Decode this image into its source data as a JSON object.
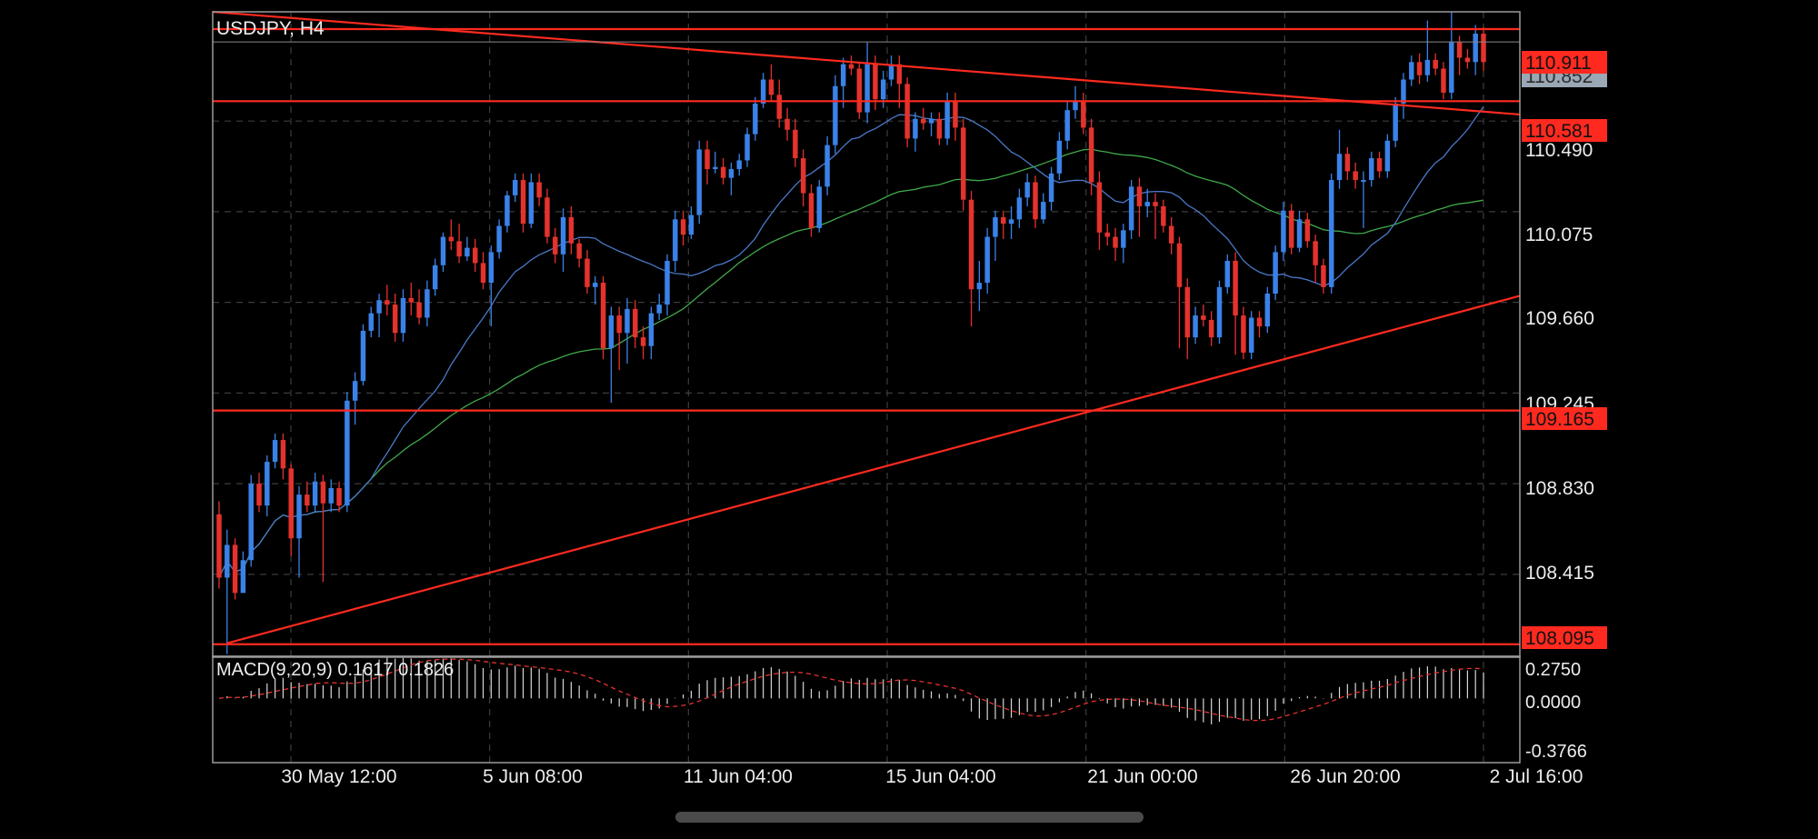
{
  "chart_data": [
    {
      "type": "candlestick",
      "symbol": "USDJPY, H4",
      "y_range": [
        108.04,
        110.99
      ],
      "price_ticks": [
        "110.490",
        "110.075",
        "109.660",
        "109.245",
        "108.830",
        "108.415"
      ],
      "time_labels": [
        "30 May 12:00",
        "5 Jun 08:00",
        "11 Jun 04:00",
        "15 Jun 04:00",
        "21 Jun 00:00",
        "26 Jun 20:00",
        "2 Jul 16:00"
      ],
      "grid": true,
      "colors": {
        "bull": "#3b82e8",
        "bear": "#e5322d",
        "line": "#ff2a1f",
        "ma_fast": "#4a78c8",
        "ma_slow": "#3fa84a"
      },
      "current_price": {
        "label": "110.852",
        "value": 110.852
      },
      "horizontal_levels": [
        {
          "label": "110.911",
          "value": 110.911
        },
        {
          "label": "110.581",
          "value": 110.581
        },
        {
          "label": "109.165",
          "value": 109.165
        },
        {
          "label": "108.095",
          "value": 108.095
        }
      ],
      "trendlines": [
        {
          "name": "resistance",
          "from": [
            0,
            110.99
          ],
          "to": [
            1,
            110.52
          ]
        },
        {
          "name": "support",
          "from": [
            0,
            108.1
          ],
          "to": [
            1,
            109.69
          ]
        }
      ],
      "candles": [
        [
          108.69,
          108.4,
          108.75,
          108.35
        ],
        [
          108.4,
          108.55,
          108.62,
          108.05
        ],
        [
          108.55,
          108.33,
          108.58,
          108.3
        ],
        [
          108.33,
          108.48,
          108.52,
          108.4
        ],
        [
          108.48,
          108.83,
          108.87,
          108.45
        ],
        [
          108.83,
          108.73,
          108.88,
          108.7
        ],
        [
          108.73,
          108.93,
          108.96,
          108.68
        ],
        [
          108.93,
          109.03,
          109.06,
          108.9
        ],
        [
          109.03,
          108.9,
          109.06,
          108.85
        ],
        [
          108.9,
          108.58,
          108.92,
          108.5
        ],
        [
          108.58,
          108.78,
          108.82,
          108.4
        ],
        [
          108.78,
          108.73,
          108.84,
          108.7
        ],
        [
          108.73,
          108.84,
          108.88,
          108.7
        ],
        [
          108.84,
          108.74,
          108.87,
          108.38
        ],
        [
          108.74,
          108.81,
          108.85,
          108.7
        ],
        [
          108.81,
          108.73,
          108.84,
          108.7
        ],
        [
          108.73,
          109.21,
          109.25,
          108.7
        ],
        [
          109.21,
          109.3,
          109.34,
          109.1
        ],
        [
          109.3,
          109.53,
          109.56,
          109.28
        ],
        [
          109.53,
          109.61,
          109.64,
          109.5
        ],
        [
          109.61,
          109.67,
          109.7,
          109.5
        ],
        [
          109.67,
          109.65,
          109.74,
          109.6
        ],
        [
          109.65,
          109.52,
          109.7,
          109.48
        ],
        [
          109.52,
          109.68,
          109.72,
          109.48
        ],
        [
          109.68,
          109.66,
          109.75,
          109.6
        ],
        [
          109.66,
          109.59,
          109.72,
          109.56
        ],
        [
          109.59,
          109.72,
          109.76,
          109.55
        ],
        [
          109.72,
          109.83,
          109.86,
          109.69
        ],
        [
          109.83,
          109.96,
          109.98,
          109.8
        ],
        [
          109.96,
          109.94,
          110.04,
          109.9
        ],
        [
          109.94,
          109.87,
          110.02,
          109.84
        ],
        [
          109.87,
          109.91,
          109.96,
          109.85
        ],
        [
          109.91,
          109.84,
          109.95,
          109.8
        ],
        [
          109.84,
          109.75,
          109.89,
          109.72
        ],
        [
          109.75,
          109.89,
          109.92,
          109.55
        ],
        [
          109.89,
          110.01,
          110.04,
          109.86
        ],
        [
          110.01,
          110.15,
          110.17,
          109.98
        ],
        [
          110.15,
          110.22,
          110.25,
          110.12
        ],
        [
          110.22,
          110.02,
          110.25,
          109.98
        ],
        [
          110.02,
          110.21,
          110.25,
          110.0
        ],
        [
          110.21,
          110.14,
          110.25,
          110.1
        ],
        [
          110.14,
          109.96,
          110.18,
          109.93
        ],
        [
          109.96,
          109.88,
          110.0,
          109.84
        ],
        [
          109.88,
          110.05,
          110.09,
          109.8
        ],
        [
          110.05,
          109.93,
          110.1,
          109.88
        ],
        [
          109.93,
          109.86,
          109.95,
          109.82
        ],
        [
          109.86,
          109.73,
          109.9,
          109.7
        ],
        [
          109.73,
          109.75,
          109.78,
          109.65
        ],
        [
          109.75,
          109.45,
          109.78,
          109.4
        ],
        [
          109.45,
          109.6,
          109.64,
          109.2
        ],
        [
          109.6,
          109.52,
          109.64,
          109.35
        ],
        [
          109.52,
          109.63,
          109.68,
          109.38
        ],
        [
          109.63,
          109.5,
          109.67,
          109.45
        ],
        [
          109.5,
          109.46,
          109.55,
          109.4
        ],
        [
          109.46,
          109.61,
          109.64,
          109.4
        ],
        [
          109.61,
          109.65,
          109.7,
          109.58
        ],
        [
          109.65,
          109.85,
          109.88,
          109.6
        ],
        [
          109.85,
          110.04,
          110.08,
          109.8
        ],
        [
          110.04,
          109.97,
          110.08,
          109.92
        ],
        [
          109.97,
          110.06,
          110.1,
          109.95
        ],
        [
          110.06,
          110.36,
          110.4,
          110.02
        ],
        [
          110.36,
          110.27,
          110.4,
          110.2
        ],
        [
          110.27,
          110.28,
          110.35,
          110.25
        ],
        [
          110.28,
          110.23,
          110.32,
          110.2
        ],
        [
          110.23,
          110.27,
          110.3,
          110.15
        ],
        [
          110.27,
          110.31,
          110.34,
          110.24
        ],
        [
          110.31,
          110.43,
          110.46,
          110.28
        ],
        [
          110.43,
          110.57,
          110.6,
          110.4
        ],
        [
          110.57,
          110.68,
          110.71,
          110.55
        ],
        [
          110.68,
          110.61,
          110.75,
          110.58
        ],
        [
          110.61,
          110.5,
          110.68,
          110.46
        ],
        [
          110.5,
          110.45,
          110.55,
          110.4
        ],
        [
          110.45,
          110.32,
          110.5,
          110.28
        ],
        [
          110.32,
          110.16,
          110.36,
          110.1
        ],
        [
          110.16,
          110.0,
          110.2,
          109.96
        ],
        [
          110.0,
          110.19,
          110.22,
          109.98
        ],
        [
          110.19,
          110.38,
          110.42,
          110.15
        ],
        [
          110.38,
          110.65,
          110.7,
          110.34
        ],
        [
          110.65,
          110.75,
          110.78,
          110.55
        ],
        [
          110.75,
          110.73,
          110.79,
          110.7
        ],
        [
          110.73,
          110.53,
          110.76,
          110.5
        ],
        [
          110.53,
          110.75,
          110.85,
          110.48
        ],
        [
          110.75,
          110.59,
          110.79,
          110.54
        ],
        [
          110.59,
          110.68,
          110.72,
          110.55
        ],
        [
          110.68,
          110.75,
          110.79,
          110.65
        ],
        [
          110.75,
          110.66,
          110.79,
          110.55
        ],
        [
          110.66,
          110.41,
          110.69,
          110.37
        ],
        [
          110.41,
          110.5,
          110.53,
          110.35
        ],
        [
          110.5,
          110.48,
          110.55,
          110.45
        ],
        [
          110.48,
          110.5,
          110.53,
          110.42
        ],
        [
          110.5,
          110.41,
          110.53,
          110.38
        ],
        [
          110.41,
          110.58,
          110.62,
          110.38
        ],
        [
          110.58,
          110.46,
          110.62,
          110.4
        ],
        [
          110.46,
          110.13,
          110.5,
          110.08
        ],
        [
          110.13,
          109.72,
          110.17,
          109.55
        ],
        [
          109.72,
          109.75,
          109.85,
          109.62
        ],
        [
          109.75,
          109.96,
          110.0,
          109.7
        ],
        [
          109.96,
          110.05,
          110.08,
          109.85
        ],
        [
          110.05,
          110.02,
          110.08,
          109.95
        ],
        [
          110.02,
          110.04,
          110.1,
          109.95
        ],
        [
          110.04,
          110.14,
          110.18,
          110.0
        ],
        [
          110.14,
          110.21,
          110.25,
          110.1
        ],
        [
          110.21,
          110.04,
          110.24,
          110.0
        ],
        [
          110.04,
          110.12,
          110.16,
          110.02
        ],
        [
          110.12,
          110.25,
          110.28,
          110.08
        ],
        [
          110.25,
          110.4,
          110.44,
          110.22
        ],
        [
          110.4,
          110.54,
          110.58,
          110.36
        ],
        [
          110.54,
          110.58,
          110.65,
          110.5
        ],
        [
          110.58,
          110.46,
          110.62,
          110.43
        ],
        [
          110.46,
          110.21,
          110.5,
          110.15
        ],
        [
          110.21,
          109.98,
          110.26,
          109.9
        ],
        [
          109.98,
          109.96,
          110.02,
          109.92
        ],
        [
          109.96,
          109.91,
          110.0,
          109.85
        ],
        [
          109.91,
          109.99,
          110.02,
          109.84
        ],
        [
          109.99,
          110.19,
          110.22,
          109.95
        ],
        [
          110.19,
          110.1,
          110.23,
          109.96
        ],
        [
          110.1,
          110.12,
          110.18,
          110.05
        ],
        [
          110.12,
          110.1,
          110.16,
          109.95
        ],
        [
          110.1,
          110.01,
          110.13,
          109.98
        ],
        [
          110.01,
          109.93,
          110.05,
          109.88
        ],
        [
          109.93,
          109.73,
          109.96,
          109.45
        ],
        [
          109.73,
          109.5,
          109.77,
          109.4
        ],
        [
          109.5,
          109.6,
          109.64,
          109.47
        ],
        [
          109.6,
          109.58,
          109.65,
          109.55
        ],
        [
          109.58,
          109.5,
          109.62,
          109.46
        ],
        [
          109.5,
          109.73,
          109.76,
          109.47
        ],
        [
          109.73,
          109.85,
          109.88,
          109.7
        ],
        [
          109.85,
          109.6,
          109.89,
          109.42
        ],
        [
          109.6,
          109.43,
          109.64,
          109.4
        ],
        [
          109.43,
          109.59,
          109.62,
          109.4
        ],
        [
          109.59,
          109.55,
          109.62,
          109.5
        ],
        [
          109.55,
          109.7,
          109.73,
          109.52
        ],
        [
          109.7,
          109.89,
          109.92,
          109.67
        ],
        [
          109.89,
          110.08,
          110.12,
          109.85
        ],
        [
          110.08,
          109.91,
          110.11,
          109.88
        ],
        [
          109.91,
          110.04,
          110.08,
          109.89
        ],
        [
          110.04,
          109.94,
          110.07,
          109.91
        ],
        [
          109.94,
          109.83,
          109.97,
          109.75
        ],
        [
          109.83,
          109.73,
          109.86,
          109.7
        ],
        [
          109.73,
          110.22,
          110.25,
          109.7
        ],
        [
          110.22,
          110.34,
          110.45,
          110.18
        ],
        [
          110.34,
          110.26,
          110.37,
          110.22
        ],
        [
          110.26,
          110.22,
          110.3,
          110.18
        ],
        [
          110.22,
          110.22,
          110.26,
          110.0
        ],
        [
          110.22,
          110.32,
          110.35,
          110.19
        ],
        [
          110.32,
          110.26,
          110.35,
          110.23
        ],
        [
          110.26,
          110.4,
          110.43,
          110.23
        ],
        [
          110.4,
          110.57,
          110.6,
          110.37
        ],
        [
          110.57,
          110.68,
          110.71,
          110.5
        ],
        [
          110.68,
          110.76,
          110.79,
          110.65
        ],
        [
          110.76,
          110.7,
          110.8,
          110.66
        ],
        [
          110.7,
          110.77,
          110.95,
          110.67
        ],
        [
          110.77,
          110.73,
          110.8,
          110.7
        ],
        [
          110.73,
          110.62,
          110.76,
          110.59
        ],
        [
          110.62,
          110.85,
          110.99,
          110.59
        ],
        [
          110.85,
          110.78,
          110.88,
          110.7
        ],
        [
          110.78,
          110.76,
          110.82,
          110.73
        ],
        [
          110.76,
          110.89,
          110.93,
          110.7
        ],
        [
          110.89,
          110.76,
          110.92,
          110.72
        ]
      ]
    },
    {
      "type": "histogram",
      "label": "MACD(9,20,9) 0.1617 0.1826",
      "y_range": [
        -0.4468,
        0.2927
      ],
      "ticks": [
        "0.2750",
        "0.0000",
        "-0.3766"
      ],
      "signal_color": "#e5322d",
      "bar_color": "#d8d8d8"
    }
  ]
}
